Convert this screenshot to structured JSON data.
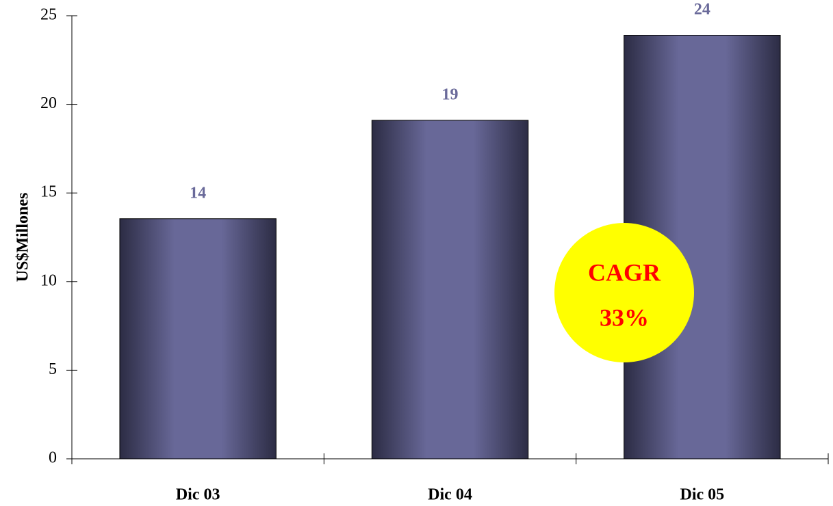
{
  "chart_data": {
    "type": "bar",
    "ylabel": "US$Millones",
    "categories": [
      "Dic 03",
      "Dic 04",
      "Dic 05"
    ],
    "values": [
      13.55,
      19.1,
      23.9
    ],
    "value_labels": [
      "14",
      "19",
      "24"
    ],
    "color": "#686898",
    "ylim": [
      0,
      25
    ],
    "yticks": [
      0,
      5,
      10,
      15,
      20,
      25
    ],
    "annotation": [
      "CAGR",
      "33%"
    ],
    "annotation_color": "#ffff00"
  }
}
